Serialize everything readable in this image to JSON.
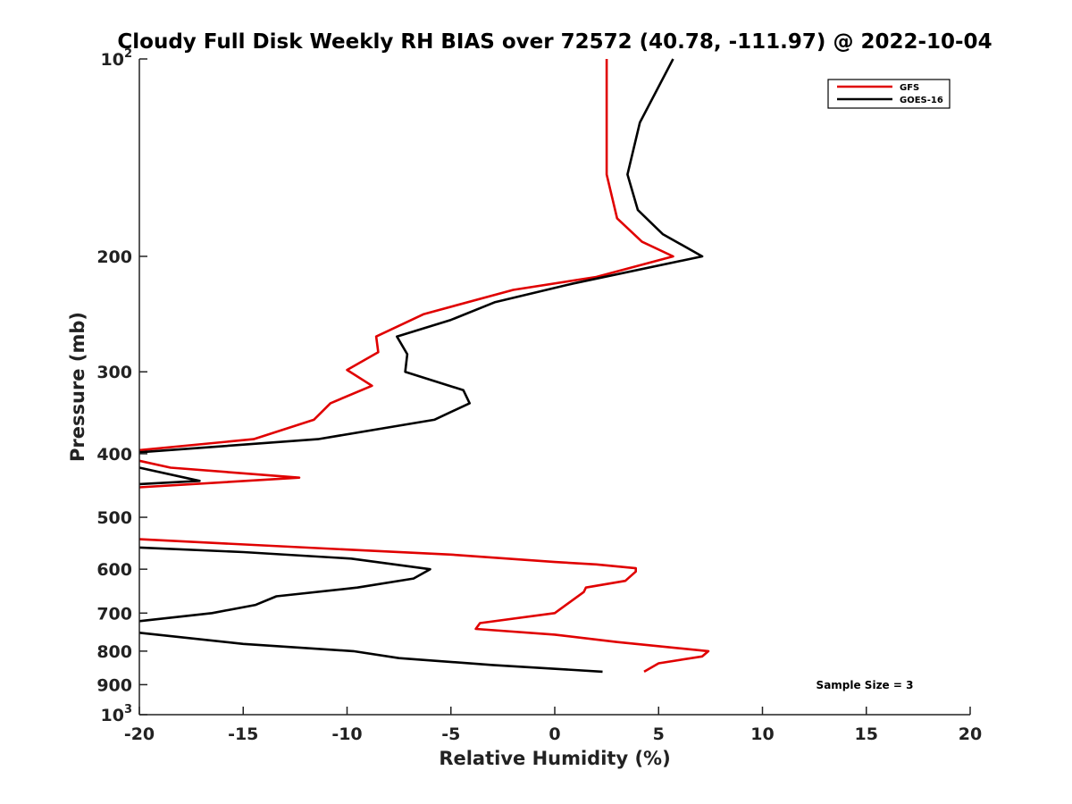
{
  "chart_data": {
    "type": "line",
    "title": "Cloudy Full Disk Weekly RH BIAS over 72572 (40.78, -111.97) @ 2022-10-04",
    "xlabel": "Relative Humidity (%)",
    "ylabel": "Pressure (mb)",
    "xlim": [
      -20,
      20
    ],
    "ylim": [
      100,
      1000
    ],
    "yscale": "log",
    "y_reversed": true,
    "x_ticks": [
      -20,
      -15,
      -10,
      -5,
      0,
      5,
      10,
      15,
      20
    ],
    "x_tick_labels": [
      "-20",
      "-15",
      "-10",
      "-5",
      "0",
      "5",
      "10",
      "15",
      "20"
    ],
    "y_ticks": [
      {
        "value": 100,
        "base": "10",
        "exp": "2"
      },
      {
        "value": 200,
        "label": "200"
      },
      {
        "value": 300,
        "label": "300"
      },
      {
        "value": 400,
        "label": "400"
      },
      {
        "value": 500,
        "label": "500"
      },
      {
        "value": 600,
        "label": "600"
      },
      {
        "value": 700,
        "label": "700"
      },
      {
        "value": 800,
        "label": "800"
      },
      {
        "value": 900,
        "label": "900"
      },
      {
        "value": 1000,
        "base": "10",
        "exp": "3"
      }
    ],
    "legend_position": "top-right",
    "annotation": "Sample Size = 3",
    "series": [
      {
        "name": "GFS",
        "color": "#e00000",
        "segments": [
          [
            [
              2.5,
              100
            ],
            [
              2.5,
              125
            ],
            [
              2.5,
              150
            ],
            [
              3.0,
              175
            ],
            [
              4.2,
              190
            ],
            [
              5.7,
              200
            ],
            [
              2.0,
              215
            ],
            [
              -2.0,
              225
            ],
            [
              -6.3,
              245
            ],
            [
              -8.6,
              265
            ],
            [
              -8.5,
              280
            ],
            [
              -10.0,
              298
            ],
            [
              -8.8,
              315
            ],
            [
              -10.8,
              335
            ],
            [
              -11.6,
              355
            ],
            [
              -14.5,
              380
            ],
            [
              -20,
              395
            ]
          ],
          [
            [
              -20,
              410
            ],
            [
              -18.5,
              420
            ],
            [
              -12.3,
              435
            ],
            [
              -20,
              450
            ]
          ],
          [
            [
              -20,
              540
            ],
            [
              -10.0,
              560
            ],
            [
              -5.0,
              570
            ],
            [
              0,
              585
            ],
            [
              2.0,
              590
            ],
            [
              3.9,
              598
            ],
            [
              3.9,
              605
            ],
            [
              3.4,
              625
            ],
            [
              1.5,
              640
            ],
            [
              1.4,
              650
            ],
            [
              0,
              700
            ],
            [
              -3.6,
              725
            ],
            [
              -3.8,
              740
            ],
            [
              0,
              755
            ],
            [
              3.0,
              775
            ],
            [
              7.4,
              800
            ],
            [
              7.1,
              815
            ],
            [
              5.0,
              835
            ],
            [
              4.3,
              860
            ]
          ]
        ]
      },
      {
        "name": "GOES-16",
        "color": "#000000",
        "segments": [
          [
            [
              5.7,
              100
            ],
            [
              4.1,
              125
            ],
            [
              3.5,
              150
            ],
            [
              4.0,
              170
            ],
            [
              5.2,
              185
            ],
            [
              7.1,
              200
            ],
            [
              0.9,
              220
            ],
            [
              -2.9,
              235
            ],
            [
              -5.0,
              250
            ],
            [
              -7.6,
              265
            ],
            [
              -7.1,
              282
            ],
            [
              -7.2,
              300
            ],
            [
              -4.4,
              320
            ],
            [
              -4.1,
              335
            ],
            [
              -5.8,
              355
            ],
            [
              -11.4,
              380
            ],
            [
              -20,
              398
            ]
          ],
          [
            [
              -20,
              420
            ],
            [
              -17.1,
              440
            ],
            [
              -20,
              445
            ]
          ],
          [
            [
              -20,
              556
            ],
            [
              -15.0,
              565
            ],
            [
              -9.8,
              578
            ],
            [
              -6.0,
              600
            ],
            [
              -6.8,
              620
            ],
            [
              -9.5,
              640
            ],
            [
              -13.4,
              660
            ],
            [
              -14.4,
              680
            ],
            [
              -16.5,
              700
            ],
            [
              -20,
              720
            ]
          ],
          [
            [
              -20,
              750
            ],
            [
              -15.0,
              780
            ],
            [
              -9.7,
              800
            ],
            [
              -7.5,
              820
            ],
            [
              -3.0,
              840
            ],
            [
              2.3,
              860
            ]
          ]
        ]
      }
    ]
  }
}
